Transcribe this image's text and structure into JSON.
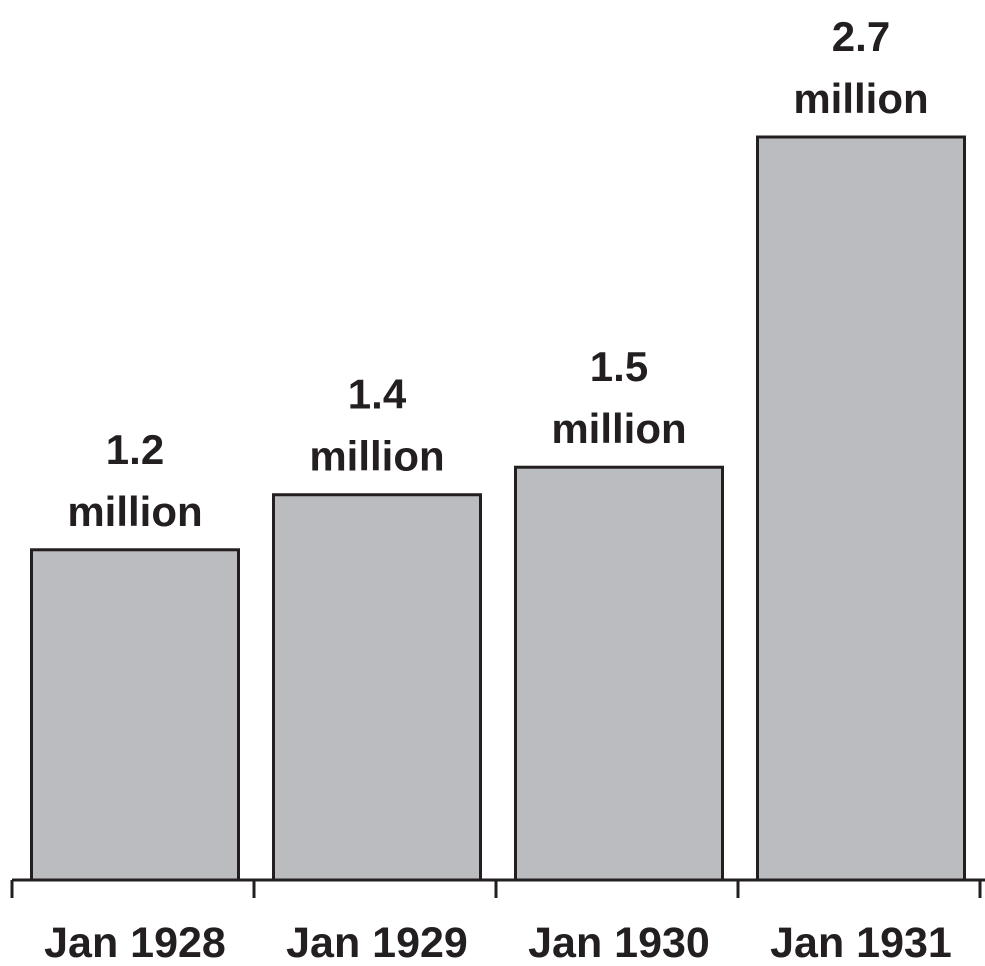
{
  "chart_data": {
    "type": "bar",
    "categories": [
      "Jan 1928",
      "Jan 1929",
      "Jan 1930",
      "Jan 1931"
    ],
    "values": [
      1.2,
      1.4,
      1.5,
      2.7
    ],
    "data_labels": [
      [
        "1.2",
        "million"
      ],
      [
        "1.4",
        "million"
      ],
      [
        "1.5",
        "million"
      ],
      [
        "2.7",
        "million"
      ]
    ],
    "title": "",
    "xlabel": "",
    "ylabel": "",
    "ylim": [
      0,
      2.7
    ],
    "grid": false,
    "legend": "none",
    "colors": {
      "bar_fill": "#bbbcc0",
      "bar_stroke": "#231f20",
      "text": "#231f20",
      "background": "#ffffff"
    }
  }
}
